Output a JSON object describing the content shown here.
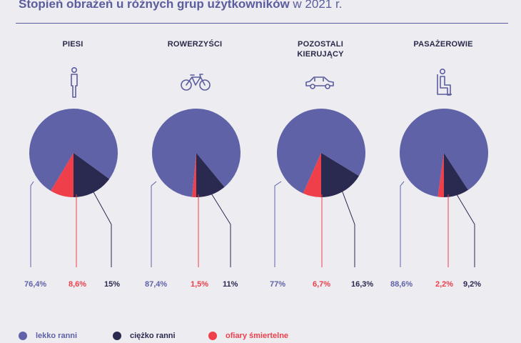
{
  "title": {
    "bold": "Stopień obrażeń u różnych grup użytkowników",
    "rest": " w 2021 r."
  },
  "colors": {
    "light": "#5f62a7",
    "heavy": "#2a2950",
    "fatal": "#ee3f4a",
    "title": "#5b5d9e"
  },
  "legend": [
    {
      "label": "lekko ranni",
      "color": "#5f62a7"
    },
    {
      "label": "ciężko ranni",
      "color": "#2a2950"
    },
    {
      "label": "ofiary śmiertelne",
      "color": "#ee3f4a"
    }
  ],
  "chart_data": [
    {
      "type": "pie",
      "title": "PIESI",
      "icon": "pedestrian-icon",
      "categories": [
        "lekko ranni",
        "ofiary śmiertelne",
        "ciężko ranni"
      ],
      "values": [
        76.4,
        8.6,
        15
      ],
      "labels": [
        "76,4%",
        "8,6%",
        "15%"
      ]
    },
    {
      "type": "pie",
      "title": "ROWERZYŚCI",
      "icon": "bicycle-icon",
      "categories": [
        "lekko ranni",
        "ofiary śmiertelne",
        "ciężko ranni"
      ],
      "values": [
        87.4,
        1.5,
        11
      ],
      "labels": [
        "87,4%",
        "1,5%",
        "11%"
      ]
    },
    {
      "type": "pie",
      "title": "POZOSTALI\nKIERUJĄCY",
      "icon": "car-icon",
      "categories": [
        "lekko ranni",
        "ofiary śmiertelne",
        "ciężko ranni"
      ],
      "values": [
        77,
        6.7,
        16.3
      ],
      "labels": [
        "77%",
        "6,7%",
        "16,3%"
      ]
    },
    {
      "type": "pie",
      "title": "PASAŻEROWIE",
      "icon": "passenger-icon",
      "categories": [
        "lekko ranni",
        "ofiary śmiertelne",
        "ciężko ranni"
      ],
      "values": [
        88.6,
        2.2,
        9.2
      ],
      "labels": [
        "88,6%",
        "2,2%",
        "9,2%"
      ]
    }
  ]
}
